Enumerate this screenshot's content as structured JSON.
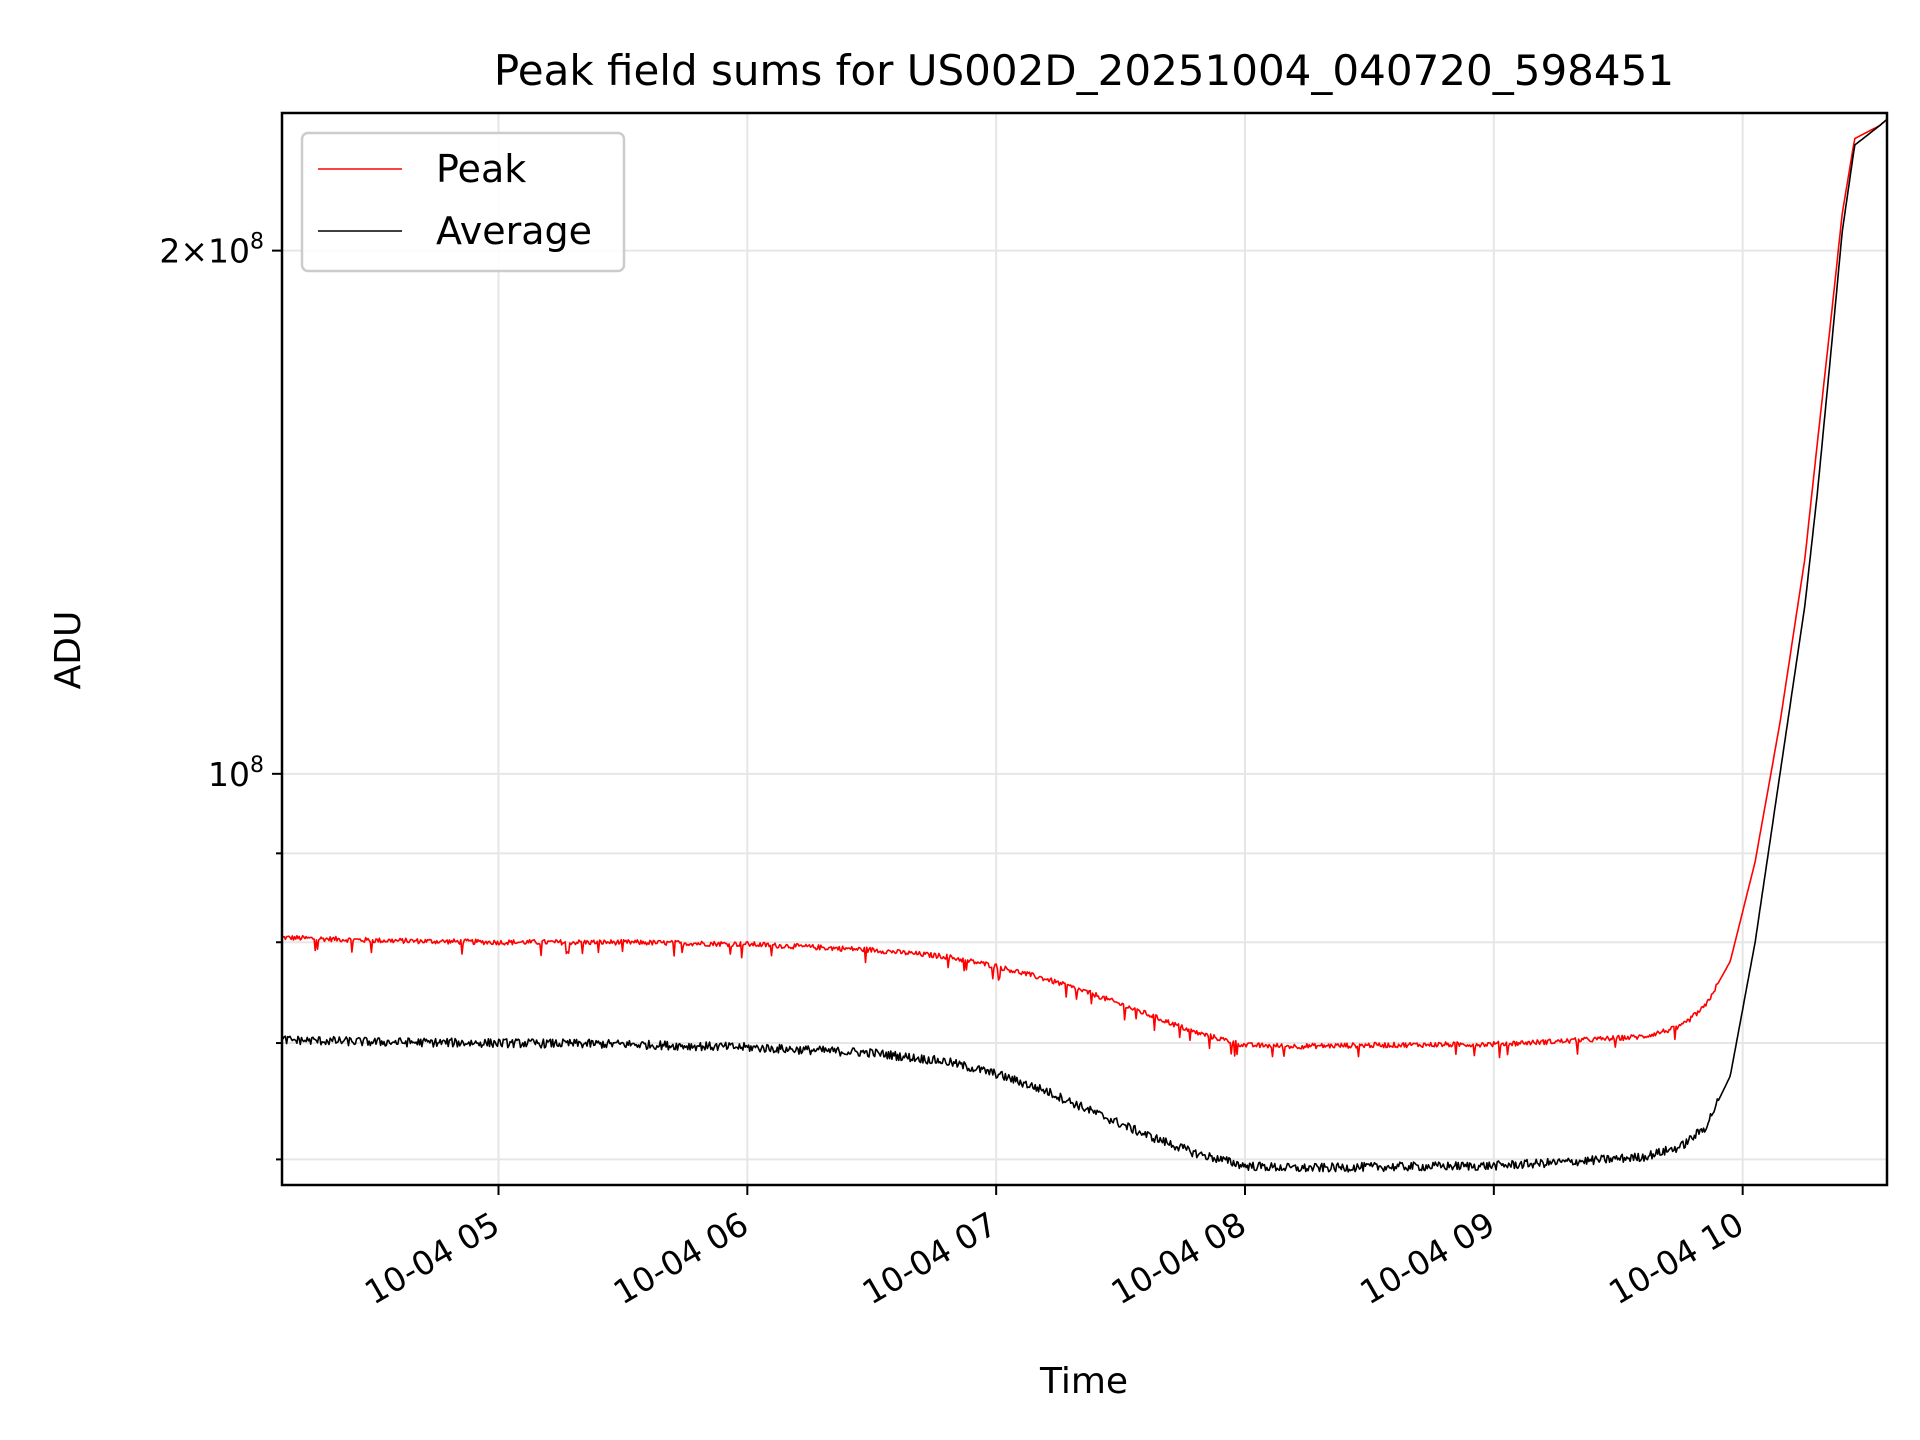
{
  "chart_data": {
    "type": "line",
    "title": "Peak field sums for US002D_20251004_040720_598451",
    "xlabel": "Time",
    "ylabel": "ADU",
    "yscale": "log",
    "grid": true,
    "legend_position": "top-left",
    "xlim_hours": [
      4.13,
      10.58
    ],
    "ylim": [
      58000000,
      240000000
    ],
    "x_ticks": [
      {
        "hour": 5,
        "label": "10-04 05"
      },
      {
        "hour": 6,
        "label": "10-04 06"
      },
      {
        "hour": 7,
        "label": "10-04 07"
      },
      {
        "hour": 8,
        "label": "10-04 08"
      },
      {
        "hour": 9,
        "label": "10-04 09"
      },
      {
        "hour": 10,
        "label": "10-04 10"
      }
    ],
    "y_major_ticks": [
      {
        "value": 100000000,
        "base": "10",
        "exponent": "8",
        "coef": ""
      },
      {
        "value": 200000000,
        "base": "10",
        "exponent": "8",
        "coef": "2×"
      }
    ],
    "y_minor_ticks": [
      60000000,
      70000000,
      80000000,
      90000000
    ],
    "series": [
      {
        "name": "Peak",
        "color": "#ff0000",
        "x_hours": [
          4.13,
          4.5,
          5.0,
          5.5,
          6.0,
          6.5,
          6.8,
          7.0,
          7.2,
          7.4,
          7.6,
          7.8,
          8.0,
          8.2,
          8.5,
          9.0,
          9.3,
          9.6,
          9.75,
          9.85,
          9.95,
          10.05,
          10.15,
          10.25,
          10.3,
          10.35,
          10.4,
          10.45,
          10.55,
          10.58
        ],
        "values": [
          80500000,
          80200000,
          80000000,
          80000000,
          79800000,
          79200000,
          78500000,
          77500000,
          76200000,
          74600000,
          72800000,
          71000000,
          69800000,
          69700000,
          69800000,
          69900000,
          70200000,
          70600000,
          71500000,
          73500000,
          78000000,
          89000000,
          107000000,
          133000000,
          155000000,
          180000000,
          210000000,
          232000000,
          236000000,
          238000000
        ]
      },
      {
        "name": "Average",
        "color": "#000000",
        "x_hours": [
          4.13,
          4.5,
          5.0,
          5.5,
          6.0,
          6.5,
          6.8,
          7.0,
          7.2,
          7.4,
          7.6,
          7.8,
          8.0,
          8.2,
          8.5,
          9.0,
          9.3,
          9.6,
          9.75,
          9.85,
          9.95,
          10.05,
          10.15,
          10.25,
          10.3,
          10.35,
          10.4,
          10.45,
          10.55,
          10.58
        ],
        "values": [
          70300000,
          70100000,
          70000000,
          69900000,
          69600000,
          69100000,
          68300000,
          67200000,
          65700000,
          63800000,
          62000000,
          60500000,
          59500000,
          59300000,
          59400000,
          59500000,
          59800000,
          60200000,
          61000000,
          62600000,
          67000000,
          80000000,
          100000000,
          125000000,
          145000000,
          172000000,
          205000000,
          230000000,
          236000000,
          238000000
        ]
      }
    ]
  }
}
